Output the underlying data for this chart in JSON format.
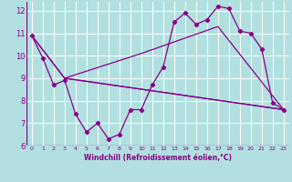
{
  "xlabel": "Windchill (Refroidissement éolien,°C)",
  "bg_color": "#b2e0e0",
  "line_color": "#880088",
  "grid_color": "#ffffff",
  "xlim": [
    -0.5,
    23.5
  ],
  "ylim": [
    6,
    12.4
  ],
  "yticks": [
    6,
    7,
    8,
    9,
    10,
    11,
    12
  ],
  "xticks": [
    0,
    1,
    2,
    3,
    4,
    5,
    6,
    7,
    8,
    9,
    10,
    11,
    12,
    13,
    14,
    15,
    16,
    17,
    18,
    19,
    20,
    21,
    22,
    23
  ],
  "series1_x": [
    0,
    1,
    2,
    3,
    4,
    5,
    6,
    7,
    8,
    9,
    10,
    11,
    12,
    13,
    14,
    15,
    16,
    17,
    18,
    19,
    20,
    21,
    22,
    23
  ],
  "series1_y": [
    10.9,
    9.9,
    8.7,
    8.9,
    7.4,
    6.6,
    7.0,
    6.3,
    6.5,
    7.6,
    7.6,
    8.7,
    9.5,
    11.5,
    11.9,
    11.4,
    11.6,
    12.2,
    12.1,
    11.1,
    11.0,
    10.3,
    7.9,
    7.6
  ],
  "series2_x": [
    0,
    3,
    23
  ],
  "series2_y": [
    10.9,
    9.0,
    7.6
  ],
  "series3_x": [
    0,
    3,
    10,
    17,
    23
  ],
  "series3_y": [
    10.9,
    9.0,
    10.1,
    11.3,
    7.6
  ],
  "series4_x": [
    3,
    23
  ],
  "series4_y": [
    9.0,
    7.6
  ]
}
